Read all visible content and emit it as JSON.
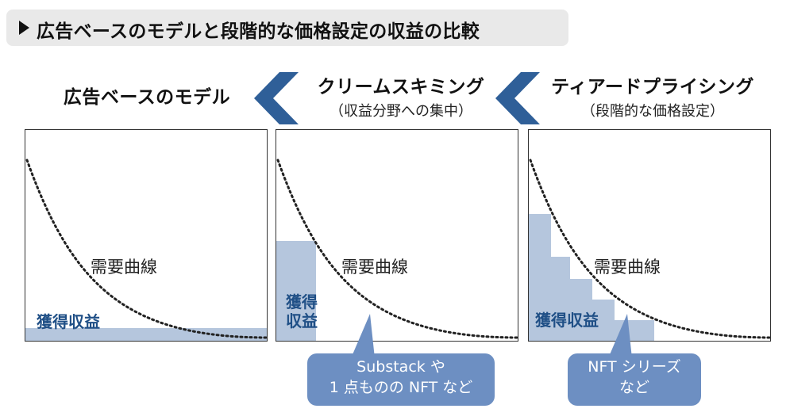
{
  "title": "広告ベースのモデルと段階的な価格設定の収益の比較",
  "models": [
    {
      "name": "広告ベースのモデル",
      "subtitle": ""
    },
    {
      "name": "クリームスキミング",
      "subtitle": "（収益分野への集中）"
    },
    {
      "name": "ティアードプライシング",
      "subtitle": "（段階的な価格設定）"
    }
  ],
  "panels": [
    {
      "curve_label": "需要曲線",
      "revenue_label": "獲得収益",
      "revenue_shape": "thin-band",
      "callout": []
    },
    {
      "curve_label": "需要曲線",
      "revenue_label_lines": [
        "獲得",
        "収益"
      ],
      "revenue_shape": "single-block",
      "callout": [
        "Substack や",
        "1 点ものの NFT など"
      ]
    },
    {
      "curve_label": "需要曲線",
      "revenue_label": "獲得収益",
      "revenue_shape": "staircase",
      "callout": [
        "NFT シリーズ",
        "など"
      ]
    }
  ],
  "colors": {
    "revenue_fill": "#b5c6dd",
    "revenue_text": "#1f4f86",
    "chevron": "#2f5f98",
    "callout_fill": "#6d8fc2",
    "title_bar": "#e9e9e9"
  }
}
